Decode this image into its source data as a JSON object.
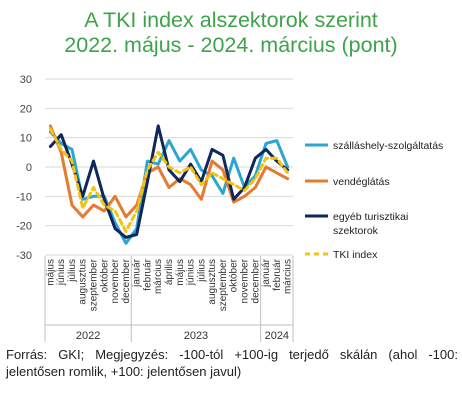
{
  "header": {
    "title_line1": "A TKI index alszektorok szerint",
    "title_line2": "2022. május - 2024. március (pont)"
  },
  "footnote": {
    "text": "Forrás: GKI; Megjegyzés: -100-tól +100-ig terjedő skálán (ahol -100: jelentősen romlik, +100: jelentősen javul)"
  },
  "chart_data": {
    "type": "line",
    "ylim": [
      -30,
      30
    ],
    "yticks": [
      -30,
      -20,
      -10,
      0,
      10,
      20,
      30
    ],
    "grid": "horizontal",
    "legend_position": "right",
    "categories": [
      "május",
      "június",
      "július",
      "augusztus",
      "szeptember",
      "október",
      "november",
      "december",
      "január",
      "február",
      "március",
      "április",
      "május",
      "június",
      "július",
      "augusztus",
      "szeptember",
      "október",
      "november",
      "december",
      "január",
      "február",
      "március"
    ],
    "years": [
      {
        "label": "2022",
        "start": 0,
        "end": 7
      },
      {
        "label": "2023",
        "start": 8,
        "end": 19
      },
      {
        "label": "2024",
        "start": 20,
        "end": 22
      }
    ],
    "series": [
      {
        "name": "szálláshely-szolgáltatás",
        "color": "#2aa6cf",
        "dashed": false,
        "values": [
          12,
          8,
          6,
          -11,
          -10,
          -10,
          -19,
          -26,
          -21,
          2,
          1,
          9,
          2,
          6,
          -1,
          -3,
          -9,
          3,
          -7,
          -3,
          8,
          9,
          0
        ]
      },
      {
        "name": "vendéglátás",
        "color": "#e57b31",
        "dashed": false,
        "values": [
          14,
          5,
          -13,
          -17,
          -13,
          -15,
          -10,
          -17,
          -13,
          -2,
          0,
          -7,
          -4,
          -6,
          -11,
          2,
          -1,
          -12,
          -10,
          -7,
          0,
          -2,
          -4
        ]
      },
      {
        "name": "egyéb turisztikai\nszektorok",
        "color": "#0f2859",
        "dashed": false,
        "values": [
          7,
          11,
          1,
          -10,
          2,
          -11,
          -21,
          -24,
          -23,
          -5,
          14,
          -1,
          -5,
          1,
          -5,
          6,
          4,
          -11,
          -7,
          3,
          6,
          2,
          -1
        ]
      },
      {
        "name": "TKI index",
        "color": "#f3c213",
        "dashed": true,
        "values": [
          13,
          6,
          2,
          -14,
          -7,
          -13,
          -15,
          -22,
          -15,
          -1,
          5,
          0,
          -2,
          0,
          -6,
          -2,
          -4,
          -6,
          -8,
          -4,
          3,
          3,
          -2
        ]
      }
    ]
  }
}
